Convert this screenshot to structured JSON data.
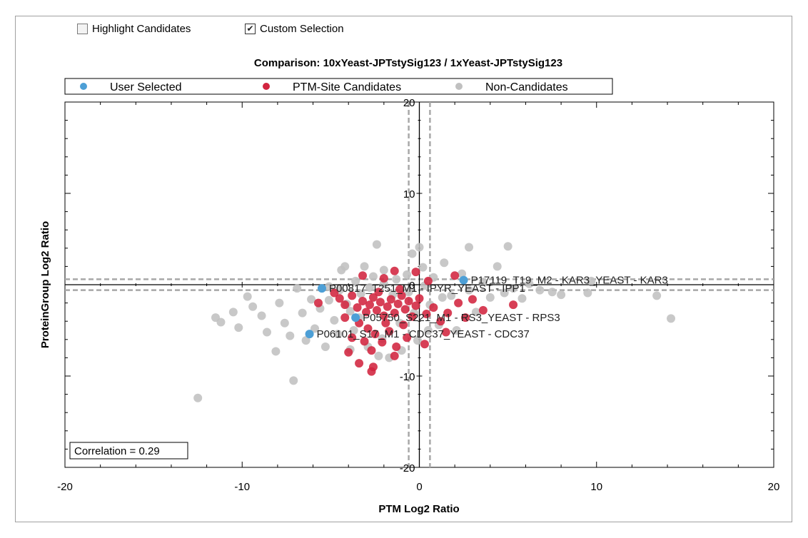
{
  "controls": {
    "highlight_candidates": {
      "label": "Highlight Candidates",
      "checked": false
    },
    "custom_selection": {
      "label": "Custom Selection",
      "checked": true
    }
  },
  "colors": {
    "user_selected": "#4d9fd6",
    "ptm_candidates": "#d2243f",
    "non_candidates": "#c0c0c0"
  },
  "chart_data": {
    "type": "scatter",
    "title": "Comparison: 10xYeast-JPTstySig123 / 1xYeast-JPTstySig123",
    "xlabel": "PTM Log2 Ratio",
    "ylabel": "ProteinGroup Log2 Ratio",
    "xlim": [
      -20,
      20
    ],
    "ylim": [
      -20,
      20
    ],
    "x_ticks": [
      "-20",
      "-10",
      "0",
      "10",
      "20"
    ],
    "y_ticks": [
      "20",
      "10",
      "0",
      "-10",
      "-20"
    ],
    "legend": {
      "placement": "top",
      "entries": [
        "User Selected",
        "PTM-Site Candidates",
        "Non-Candidates"
      ]
    },
    "annotation": "Correlation = 0.29",
    "reference_lines": {
      "x": [
        -0.6,
        0.6
      ],
      "y": [
        -0.6,
        0.6
      ]
    },
    "series": [
      {
        "name": "User Selected",
        "points": [
          {
            "x": 2.5,
            "y": 0.5,
            "label": "P17119_T19_M2 - KAR3_YEAST - KAR3"
          },
          {
            "x": -5.5,
            "y": -0.4,
            "label": "P00817_T251_M1 - IPYR_YEAST - IPP1"
          },
          {
            "x": -3.6,
            "y": -3.6,
            "label": "P05750_S221_M1 - RS3_YEAST - RPS3"
          },
          {
            "x": -6.2,
            "y": -5.4,
            "label": "P06101_S17_M1 - CDC37_YEAST - CDC37"
          }
        ]
      },
      {
        "name": "PTM-Site Candidates",
        "points": [
          [
            -4.5,
            -1.5
          ],
          [
            -4.2,
            -2.2
          ],
          [
            -3.8,
            -1.2
          ],
          [
            -3.5,
            -2.5
          ],
          [
            -3.2,
            -1.8
          ],
          [
            -3.0,
            -3.0
          ],
          [
            -2.8,
            -2.2
          ],
          [
            -2.6,
            -1.4
          ],
          [
            -2.4,
            -2.8
          ],
          [
            -2.2,
            -1.9
          ],
          [
            -2.0,
            -3.4
          ],
          [
            -1.8,
            -2.4
          ],
          [
            -1.6,
            -1.6
          ],
          [
            -1.4,
            -3.1
          ],
          [
            -1.2,
            -2.1
          ],
          [
            -1.0,
            -1.2
          ],
          [
            -0.8,
            -2.7
          ],
          [
            -0.6,
            -1.8
          ],
          [
            -0.4,
            -3.5
          ],
          [
            -0.2,
            -2.3
          ],
          [
            0.0,
            -1.5
          ],
          [
            -3.4,
            -4.2
          ],
          [
            -2.9,
            -4.8
          ],
          [
            -2.5,
            -5.4
          ],
          [
            -2.1,
            -6.3
          ],
          [
            -1.7,
            -5.1
          ],
          [
            -1.3,
            -6.8
          ],
          [
            -0.9,
            -4.4
          ],
          [
            -3.8,
            -5.8
          ],
          [
            -4.2,
            -3.6
          ],
          [
            -2.7,
            -7.2
          ],
          [
            -2.7,
            -9.5
          ],
          [
            -2.6,
            -9.0
          ],
          [
            -3.4,
            -8.6
          ],
          [
            -1.4,
            -7.8
          ],
          [
            -4.0,
            -7.4
          ],
          [
            0.4,
            -3.2
          ],
          [
            0.8,
            -2.5
          ],
          [
            1.2,
            -4.0
          ],
          [
            1.6,
            -3.1
          ],
          [
            2.2,
            -2.0
          ],
          [
            2.6,
            -3.6
          ],
          [
            3.0,
            -1.6
          ],
          [
            3.6,
            -2.8
          ],
          [
            5.3,
            -2.2
          ],
          [
            1.5,
            -5.2
          ],
          [
            0.3,
            -6.5
          ],
          [
            -1.4,
            1.5
          ],
          [
            -0.2,
            1.4
          ],
          [
            -3.2,
            1.0
          ],
          [
            -2.0,
            0.7
          ],
          [
            0.5,
            0.4
          ],
          [
            2.0,
            1.0
          ],
          [
            -4.8,
            -0.9
          ],
          [
            -5.7,
            -2.0
          ],
          [
            -0.7,
            -5.8
          ],
          [
            -1.9,
            -4.2
          ],
          [
            -3.1,
            -6.2
          ],
          [
            -2.3,
            -0.8
          ],
          [
            -1.1,
            -0.5
          ]
        ]
      },
      {
        "name": "Non-Candidates",
        "points": [
          [
            -12.5,
            -12.4
          ],
          [
            -11.5,
            -3.6
          ],
          [
            -11.2,
            -4.1
          ],
          [
            -10.5,
            -3.0
          ],
          [
            -10.2,
            -4.7
          ],
          [
            -9.7,
            -1.3
          ],
          [
            -9.4,
            -2.4
          ],
          [
            -8.9,
            -3.4
          ],
          [
            -8.6,
            -5.2
          ],
          [
            -8.1,
            -7.3
          ],
          [
            -7.9,
            -2.0
          ],
          [
            -7.6,
            -4.2
          ],
          [
            -7.3,
            -5.6
          ],
          [
            -7.1,
            -10.5
          ],
          [
            -6.9,
            -0.4
          ],
          [
            -6.6,
            -3.1
          ],
          [
            -6.4,
            -6.1
          ],
          [
            -6.1,
            -1.6
          ],
          [
            -5.9,
            -4.8
          ],
          [
            -5.6,
            -2.6
          ],
          [
            -5.3,
            -6.8
          ],
          [
            -5.1,
            -0.2
          ],
          [
            -4.8,
            -3.9
          ],
          [
            -4.6,
            -5.4
          ],
          [
            -4.4,
            1.6
          ],
          [
            -4.1,
            -2.1
          ],
          [
            -3.9,
            -7.1
          ],
          [
            -3.6,
            0.4
          ],
          [
            -3.3,
            -1.0
          ],
          [
            -3.1,
            2.0
          ],
          [
            -2.9,
            -6.8
          ],
          [
            -2.6,
            0.9
          ],
          [
            -2.3,
            -7.8
          ],
          [
            -2.0,
            1.6
          ],
          [
            -1.7,
            -8.0
          ],
          [
            -1.3,
            0.6
          ],
          [
            -1.0,
            -7.2
          ],
          [
            -0.7,
            1.1
          ],
          [
            -0.4,
            3.4
          ],
          [
            -0.1,
            -6.1
          ],
          [
            0.2,
            1.9
          ],
          [
            0.5,
            -5.0
          ],
          [
            0.8,
            0.8
          ],
          [
            1.1,
            -4.4
          ],
          [
            1.4,
            2.4
          ],
          [
            1.8,
            -1.2
          ],
          [
            2.1,
            -5.0
          ],
          [
            2.4,
            1.2
          ],
          [
            2.8,
            -0.6
          ],
          [
            3.2,
            -3.0
          ],
          [
            3.6,
            0.3
          ],
          [
            4.0,
            -1.4
          ],
          [
            4.4,
            2.0
          ],
          [
            4.8,
            -0.9
          ],
          [
            5.0,
            4.2
          ],
          [
            5.3,
            -0.4
          ],
          [
            5.8,
            -1.5
          ],
          [
            6.2,
            0.1
          ],
          [
            6.8,
            -0.6
          ],
          [
            7.5,
            -0.8
          ],
          [
            8.0,
            -1.1
          ],
          [
            9.5,
            -0.9
          ],
          [
            9.7,
            0.4
          ],
          [
            13.4,
            -1.2
          ],
          [
            14.2,
            -3.7
          ],
          [
            -2.4,
            4.4
          ],
          [
            0.0,
            4.1
          ],
          [
            2.8,
            4.1
          ],
          [
            -4.2,
            2.0
          ],
          [
            -3.7,
            -5.0
          ],
          [
            -2.1,
            -5.9
          ],
          [
            -1.1,
            -4.2
          ],
          [
            -0.3,
            -3.1
          ],
          [
            0.6,
            -2.2
          ],
          [
            1.3,
            -1.4
          ],
          [
            -5.1,
            -1.7
          ],
          [
            -4.5,
            -0.6
          ],
          [
            -3.9,
            -2.9
          ],
          [
            -3.4,
            -3.6
          ],
          [
            -2.8,
            -0.3
          ],
          [
            -2.0,
            0.1
          ],
          [
            -1.5,
            -1.1
          ],
          [
            -0.6,
            -0.8
          ],
          [
            0.3,
            -0.1
          ]
        ]
      }
    ]
  }
}
